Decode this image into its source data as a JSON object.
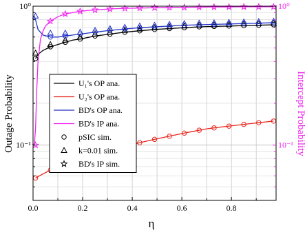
{
  "chart_data": {
    "type": "line",
    "xlabel": "η",
    "ylabel": "Outage Probability",
    "ylabel_right": "Intercept Probability",
    "xlim": [
      0,
      0.98
    ],
    "ylim": [
      0.04,
      1
    ],
    "yscale": "log",
    "xticks": [
      0,
      0.2,
      0.4,
      0.6,
      0.8
    ],
    "xtick_labels": [
      "0.0",
      "0.2",
      "0.4",
      "0.6",
      "0.8"
    ],
    "ytick_labels": {
      "major_1": "10⁰",
      "major_01": "10⁻¹"
    },
    "right_tick_labels": {
      "major_1": "10⁰",
      "major_01": "10⁻¹"
    },
    "grid": true,
    "legend_position": "center-left",
    "legend": [
      {
        "label": "U₁'s OP ana.",
        "kind": "line",
        "color": "#000000"
      },
      {
        "label": "U₂'s OP ana.",
        "kind": "line",
        "color": "#e8221a"
      },
      {
        "label": "BD's OP ana.",
        "kind": "line",
        "color": "#2133c8"
      },
      {
        "label": "BD's IP ana.",
        "kind": "line",
        "color": "#ee22ee"
      },
      {
        "label": "pSIC sim.",
        "kind": "marker",
        "marker": "circle"
      },
      {
        "label": "k=0.01 sim.",
        "kind": "marker",
        "marker": "triangle"
      },
      {
        "label": "BD's IP sim.",
        "kind": "marker",
        "marker": "star"
      }
    ],
    "series": [
      {
        "name": "U₁'s OP ana.",
        "color": "#000000",
        "x": [
          0.01,
          0.02,
          0.04,
          0.07,
          0.1,
          0.13,
          0.16,
          0.19,
          0.25,
          0.31,
          0.37,
          0.43,
          0.49,
          0.55,
          0.61,
          0.67,
          0.73,
          0.79,
          0.85,
          0.91,
          0.97
        ],
        "y": [
          0.42,
          0.45,
          0.48,
          0.51,
          0.53,
          0.55,
          0.57,
          0.58,
          0.61,
          0.63,
          0.65,
          0.665,
          0.68,
          0.69,
          0.7,
          0.71,
          0.715,
          0.72,
          0.725,
          0.73,
          0.735
        ]
      },
      {
        "name": "U₂'s OP ana.",
        "color": "#e8221a",
        "x": [
          0.01,
          0.04,
          0.07,
          0.1,
          0.13,
          0.16,
          0.19,
          0.22,
          0.25,
          0.28,
          0.31,
          0.34,
          0.37,
          0.4,
          0.43,
          0.46,
          0.49,
          0.52,
          0.55,
          0.58,
          0.61,
          0.64,
          0.67,
          0.7,
          0.73,
          0.76,
          0.79,
          0.82,
          0.85,
          0.88,
          0.91,
          0.94,
          0.97
        ],
        "y": [
          0.058,
          0.062,
          0.066,
          0.07,
          0.073,
          0.077,
          0.08,
          0.083,
          0.086,
          0.089,
          0.092,
          0.095,
          0.098,
          0.101,
          0.104,
          0.107,
          0.11,
          0.113,
          0.116,
          0.119,
          0.122,
          0.125,
          0.128,
          0.131,
          0.133,
          0.135,
          0.137,
          0.139,
          0.141,
          0.143,
          0.145,
          0.147,
          0.149
        ]
      },
      {
        "name": "BD's OP ana.",
        "color": "#2133c8",
        "x": [
          0.005,
          0.01,
          0.02,
          0.04,
          0.07,
          0.1,
          0.13,
          0.16,
          0.19,
          0.25,
          0.31,
          0.37,
          0.43,
          0.49,
          0.55,
          0.61,
          0.67,
          0.73,
          0.79,
          0.85,
          0.91,
          0.97
        ],
        "y": [
          0.85,
          0.8,
          0.68,
          0.62,
          0.6,
          0.6,
          0.61,
          0.62,
          0.63,
          0.65,
          0.67,
          0.685,
          0.7,
          0.71,
          0.72,
          0.73,
          0.735,
          0.74,
          0.745,
          0.75,
          0.755,
          0.76
        ]
      },
      {
        "name": "BD's IP ana.",
        "color": "#ee22ee",
        "x": [
          0.005,
          0.01,
          0.015,
          0.02,
          0.03,
          0.04,
          0.05,
          0.07,
          0.1,
          0.13,
          0.19,
          0.25,
          0.31,
          0.37,
          0.43,
          0.49,
          0.55,
          0.61,
          0.67,
          0.73,
          0.79,
          0.85,
          0.91,
          0.97
        ],
        "y": [
          0.1,
          0.13,
          0.25,
          0.4,
          0.58,
          0.66,
          0.72,
          0.78,
          0.84,
          0.88,
          0.92,
          0.94,
          0.955,
          0.965,
          0.97,
          0.975,
          0.98,
          0.982,
          0.985,
          0.987,
          0.988,
          0.99,
          0.99,
          0.99
        ]
      }
    ],
    "markers": [
      {
        "series": "U₁'s OP ana.",
        "marker": "circle",
        "x": [
          0.01,
          0.07,
          0.13,
          0.19,
          0.25,
          0.31,
          0.37,
          0.43,
          0.49,
          0.55,
          0.61,
          0.67,
          0.73,
          0.79,
          0.85,
          0.91,
          0.97
        ],
        "y": [
          0.42,
          0.51,
          0.55,
          0.58,
          0.61,
          0.63,
          0.65,
          0.665,
          0.68,
          0.69,
          0.7,
          0.71,
          0.715,
          0.72,
          0.725,
          0.73,
          0.735
        ]
      },
      {
        "series": "U₁'s OP ana.",
        "marker": "triangle",
        "x": [
          0.01,
          0.07,
          0.13,
          0.19,
          0.25,
          0.31,
          0.37,
          0.43,
          0.49,
          0.55,
          0.61,
          0.67,
          0.73,
          0.79,
          0.85,
          0.91,
          0.97
        ],
        "y": [
          0.46,
          0.53,
          0.57,
          0.6,
          0.63,
          0.65,
          0.67,
          0.685,
          0.7,
          0.71,
          0.72,
          0.73,
          0.735,
          0.74,
          0.745,
          0.75,
          0.755
        ]
      },
      {
        "series": "U₂'s OP ana.",
        "marker": "circle",
        "x": [
          0.01,
          0.07,
          0.13,
          0.19,
          0.25,
          0.31,
          0.37,
          0.43,
          0.49,
          0.55,
          0.61,
          0.67,
          0.73,
          0.79,
          0.85,
          0.91,
          0.97
        ],
        "y": [
          0.058,
          0.066,
          0.073,
          0.08,
          0.086,
          0.092,
          0.098,
          0.104,
          0.11,
          0.116,
          0.122,
          0.128,
          0.133,
          0.137,
          0.141,
          0.145,
          0.149
        ]
      },
      {
        "series": "BD's OP ana.",
        "marker": "circle",
        "x": [
          0.07,
          0.13,
          0.19,
          0.25,
          0.31,
          0.37,
          0.43,
          0.49,
          0.55,
          0.61,
          0.67,
          0.73,
          0.79,
          0.85,
          0.91,
          0.97
        ],
        "y": [
          0.6,
          0.61,
          0.63,
          0.65,
          0.67,
          0.685,
          0.7,
          0.71,
          0.72,
          0.73,
          0.735,
          0.74,
          0.745,
          0.75,
          0.755,
          0.76
        ]
      },
      {
        "series": "BD's OP ana.",
        "marker": "triangle",
        "x": [
          0.01,
          0.07,
          0.13,
          0.19,
          0.25,
          0.31,
          0.37,
          0.43,
          0.49,
          0.55,
          0.61,
          0.67,
          0.73,
          0.79,
          0.85,
          0.91,
          0.97
        ],
        "y": [
          0.85,
          0.64,
          0.64,
          0.65,
          0.67,
          0.69,
          0.705,
          0.72,
          0.73,
          0.74,
          0.75,
          0.755,
          0.76,
          0.765,
          0.77,
          0.775,
          0.78
        ]
      },
      {
        "series": "BD's IP ana.",
        "marker": "star",
        "x": [
          0.01,
          0.07,
          0.13,
          0.19,
          0.25,
          0.31,
          0.37,
          0.43,
          0.49,
          0.55,
          0.61,
          0.67,
          0.73,
          0.79,
          0.85,
          0.91,
          0.97
        ],
        "y": [
          0.1,
          0.78,
          0.88,
          0.92,
          0.94,
          0.955,
          0.965,
          0.97,
          0.975,
          0.98,
          0.982,
          0.985,
          0.987,
          0.988,
          0.99,
          0.99,
          0.99
        ]
      }
    ]
  }
}
